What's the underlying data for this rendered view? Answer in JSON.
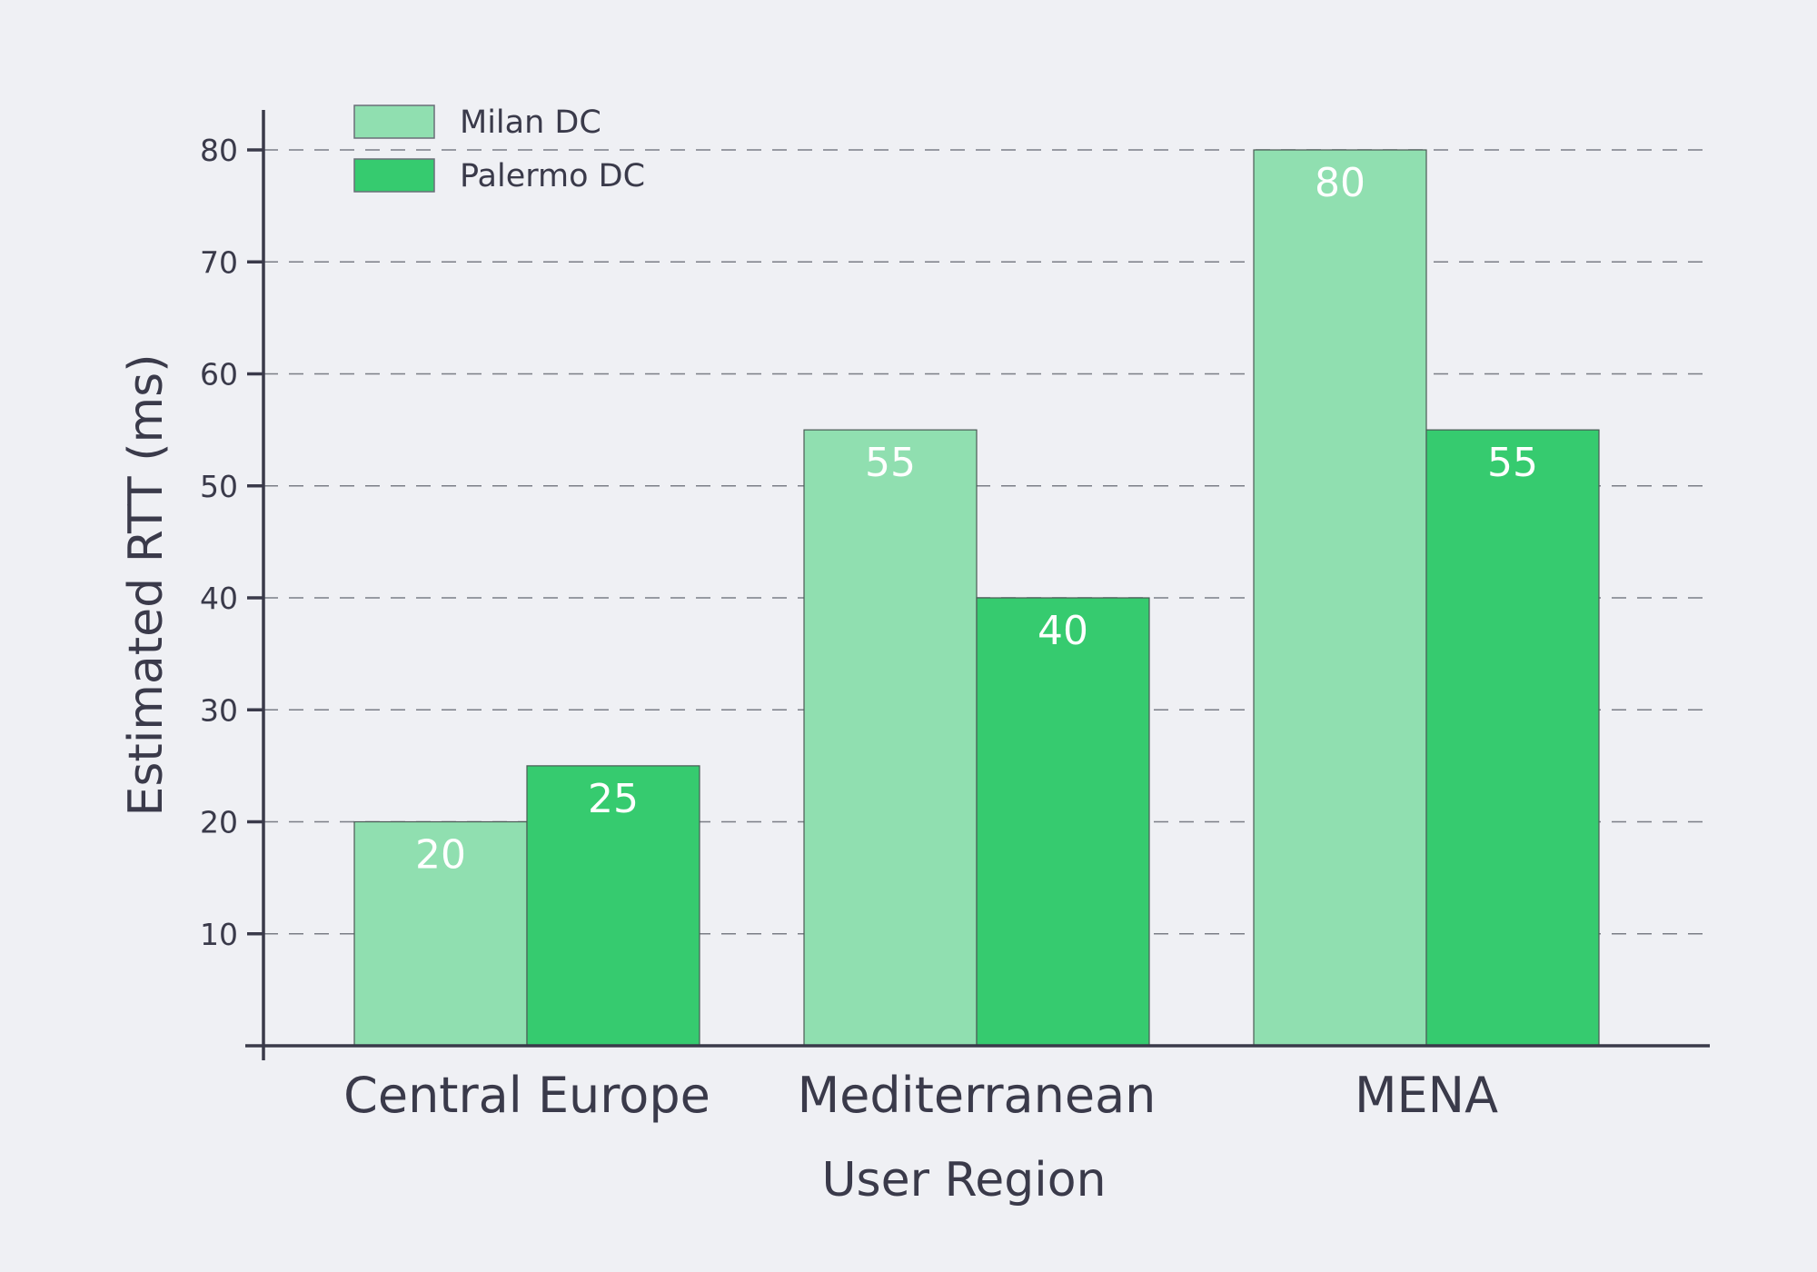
{
  "chart_data": {
    "type": "bar",
    "title": "",
    "xlabel": "User Region",
    "ylabel": "Estimated RTT (ms)",
    "categories": [
      "Central Europe",
      "Mediterranean",
      "MENA"
    ],
    "series": [
      {
        "name": "Milan DC",
        "values": [
          20,
          55,
          80
        ],
        "color": "#90dfb0"
      },
      {
        "name": "Palermo DC",
        "values": [
          25,
          40,
          55
        ],
        "color": "#36cb6f"
      }
    ],
    "ylim": [
      0,
      85
    ],
    "yticks": [
      10,
      20,
      30,
      40,
      50,
      60,
      70,
      80
    ],
    "grid": "horizontal dashed",
    "legend": "top-left",
    "data_labels": true
  },
  "colors": {
    "background": "#eff0f4",
    "axis": "#3a3a4a",
    "label_text": "#ffffff"
  }
}
